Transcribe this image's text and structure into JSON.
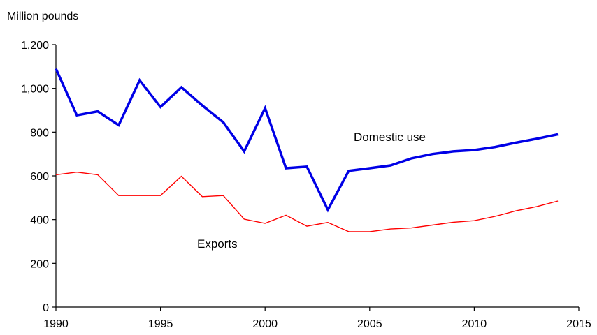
{
  "chart_data": {
    "type": "line",
    "y_unit_label": "Million pounds",
    "xlim": [
      1990,
      2015
    ],
    "ylim": [
      0,
      1200
    ],
    "x_ticks": [
      1990,
      1995,
      2000,
      2005,
      2010,
      2015
    ],
    "y_ticks": [
      0,
      200,
      400,
      600,
      800,
      1000,
      1200
    ],
    "y_tick_labels": [
      "0",
      "200",
      "400",
      "600",
      "800",
      "1,000",
      "1,200"
    ],
    "grid": false,
    "series": [
      {
        "name": "Domestic use",
        "color": "#0000e6",
        "x": [
          1990,
          1991,
          1992,
          1993,
          1994,
          1995,
          1996,
          1997,
          1998,
          1999,
          2000,
          2001,
          2002,
          2003,
          2004,
          2005,
          2006,
          2007,
          2008,
          2009,
          2010,
          2011,
          2012,
          2013,
          2014
        ],
        "y": [
          1090,
          877,
          895,
          832,
          1037,
          915,
          1005,
          922,
          845,
          712,
          910,
          635,
          642,
          445,
          623,
          635,
          648,
          680,
          700,
          712,
          718,
          732,
          752,
          770,
          790
        ]
      },
      {
        "name": "Exports",
        "color": "#ff0000",
        "x": [
          1990,
          1991,
          1992,
          1993,
          1994,
          1995,
          1996,
          1997,
          1998,
          1999,
          2000,
          2001,
          2002,
          2003,
          2004,
          2005,
          2006,
          2007,
          2008,
          2009,
          2010,
          2011,
          2012,
          2013,
          2014
        ],
        "y": [
          605,
          617,
          605,
          510,
          510,
          510,
          598,
          505,
          510,
          402,
          383,
          420,
          370,
          387,
          345,
          345,
          357,
          362,
          375,
          388,
          395,
          415,
          440,
          460,
          485
        ]
      }
    ]
  }
}
